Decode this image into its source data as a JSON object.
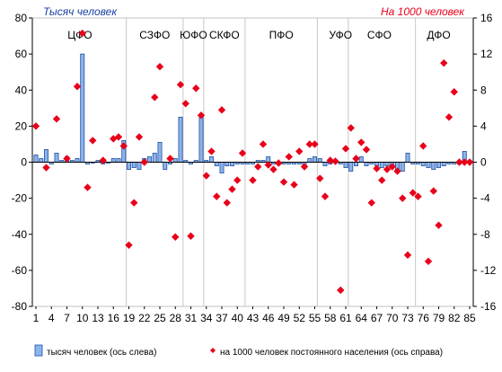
{
  "chart_data": {
    "type": "bar",
    "left_axis_title": "Тысяч человек",
    "right_axis_title": "На 1000 человек",
    "left_axis": {
      "min": -80,
      "max": 80,
      "step": 20,
      "ticks": [
        "-80",
        "-60",
        "-40",
        "-20",
        "0",
        "20",
        "40",
        "60",
        "80"
      ]
    },
    "right_axis": {
      "min": -16,
      "max": 16,
      "step": 4,
      "ticks": [
        "-16",
        "-12",
        "-8",
        "-4",
        "0",
        "4",
        "8",
        "12",
        "16"
      ]
    },
    "x_axis": {
      "min": 1,
      "max": 85,
      "ticks": [
        1,
        4,
        7,
        10,
        13,
        16,
        19,
        22,
        25,
        28,
        31,
        34,
        37,
        40,
        43,
        46,
        49,
        52,
        55,
        58,
        61,
        64,
        67,
        70,
        73,
        76,
        79,
        82,
        85
      ]
    },
    "district_labels": [
      {
        "label": "ЦФО",
        "center": 9.5
      },
      {
        "label": "СЗФО",
        "center": 24
      },
      {
        "label": "ЮФО",
        "center": 31.5
      },
      {
        "label": "СКФО",
        "center": 37.5
      },
      {
        "label": "ПФО",
        "center": 48.5
      },
      {
        "label": "УФО",
        "center": 60
      },
      {
        "label": "СФО",
        "center": 67.5
      },
      {
        "label": "ДФО",
        "center": 79
      }
    ],
    "district_separators": [
      18.5,
      29.5,
      33.5,
      41.5,
      55.5,
      61.5,
      74.5
    ],
    "series": [
      {
        "name": "тысяч человек (ось слева)",
        "axis": "left",
        "x": [
          1,
          2,
          3,
          4,
          5,
          6,
          7,
          8,
          9,
          10,
          11,
          12,
          13,
          14,
          15,
          16,
          17,
          18,
          19,
          20,
          21,
          22,
          23,
          24,
          25,
          26,
          27,
          28,
          29,
          30,
          31,
          32,
          33,
          34,
          35,
          36,
          37,
          38,
          39,
          40,
          41,
          42,
          43,
          44,
          45,
          46,
          47,
          48,
          49,
          50,
          51,
          52,
          53,
          54,
          55,
          56,
          57,
          58,
          59,
          60,
          61,
          62,
          63,
          64,
          65,
          66,
          67,
          68,
          69,
          70,
          71,
          72,
          73,
          74,
          75,
          76,
          77,
          78,
          79,
          80,
          81,
          82,
          83,
          84,
          85
        ],
        "values": [
          4,
          2,
          7,
          -1,
          5,
          1,
          3,
          1,
          2,
          60,
          -1,
          -0.5,
          1,
          -1,
          -0.5,
          2,
          2,
          12,
          -4,
          -3,
          -4,
          2,
          3,
          5,
          11,
          -4,
          -1,
          2,
          25,
          1,
          -1,
          1,
          26,
          1,
          3,
          -2,
          -6,
          -2,
          -2,
          -1,
          -1,
          -1,
          -1,
          1,
          1,
          3,
          -1,
          -1,
          -1,
          -1,
          -1,
          -1,
          -3,
          2,
          3,
          2,
          -2,
          -1,
          1,
          -1,
          -3,
          -5,
          -2,
          3,
          -2,
          -1,
          -2,
          -3,
          -2,
          -2,
          -4,
          -5,
          5,
          -1,
          -1,
          -2,
          -3,
          -4,
          -3,
          -2,
          -1,
          -1,
          -1,
          6,
          1
        ]
      },
      {
        "name": "на 1000 человек постоянного населения (ось справа)",
        "axis": "right",
        "x": [
          1,
          3,
          5,
          7,
          9,
          10,
          11,
          12,
          14,
          16,
          17,
          18,
          19,
          20,
          21,
          22,
          24,
          25,
          27,
          28,
          29,
          30,
          31,
          32,
          33,
          34,
          35,
          36,
          37,
          38,
          39,
          40,
          41,
          43,
          44,
          45,
          46,
          47,
          48,
          49,
          50,
          51,
          52,
          53,
          54,
          55,
          56,
          57,
          58,
          59,
          60,
          61,
          62,
          63,
          64,
          65,
          66,
          67,
          68,
          69,
          70,
          71,
          72,
          73,
          74,
          75,
          76,
          77,
          78,
          79,
          80,
          81,
          82,
          83,
          84,
          85
        ],
        "values": [
          4,
          -0.6,
          4.8,
          0.4,
          8.4,
          14.3,
          -2.8,
          2.4,
          0.2,
          2.6,
          2.8,
          1.8,
          -9.2,
          -4.5,
          2.8,
          0,
          7.2,
          10.6,
          0.4,
          -8.3,
          8.6,
          6.5,
          -8.2,
          8.2,
          5.2,
          -1.5,
          1.2,
          -3.8,
          5.8,
          -4.5,
          -3,
          -2,
          1,
          -2,
          -0.5,
          2,
          -0.3,
          -0.8,
          -0.1,
          -2.2,
          0.6,
          -2.5,
          1.2,
          -0.5,
          2,
          2,
          -1.8,
          -3.8,
          0.2,
          0.1,
          -14.2,
          1.5,
          3.8,
          0.4,
          2.2,
          1.4,
          -4.5,
          -0.7,
          -2,
          -0.8,
          -0.5,
          -1,
          -4,
          -10.3,
          -3.4,
          -3.8,
          1.8,
          -11,
          -3.2,
          -7,
          11,
          5,
          7.8,
          0,
          0,
          0
        ]
      }
    ],
    "legend": [
      {
        "label": "тысяч человек (ось слева)",
        "marker": "bar"
      },
      {
        "label": "на 1000 человек постоянного населения (ось справа)",
        "marker": "diamond"
      }
    ],
    "colors": {
      "bar_fill": "#8cb4ec",
      "bar_stroke": "#1f4fa0",
      "diamond": "#e8001a",
      "left_title": "#1a3fa0",
      "right_title": "#e8001a",
      "axis": "#000000",
      "separator": "#c8c8c8"
    },
    "grid": false,
    "legend_position": "bottom"
  }
}
